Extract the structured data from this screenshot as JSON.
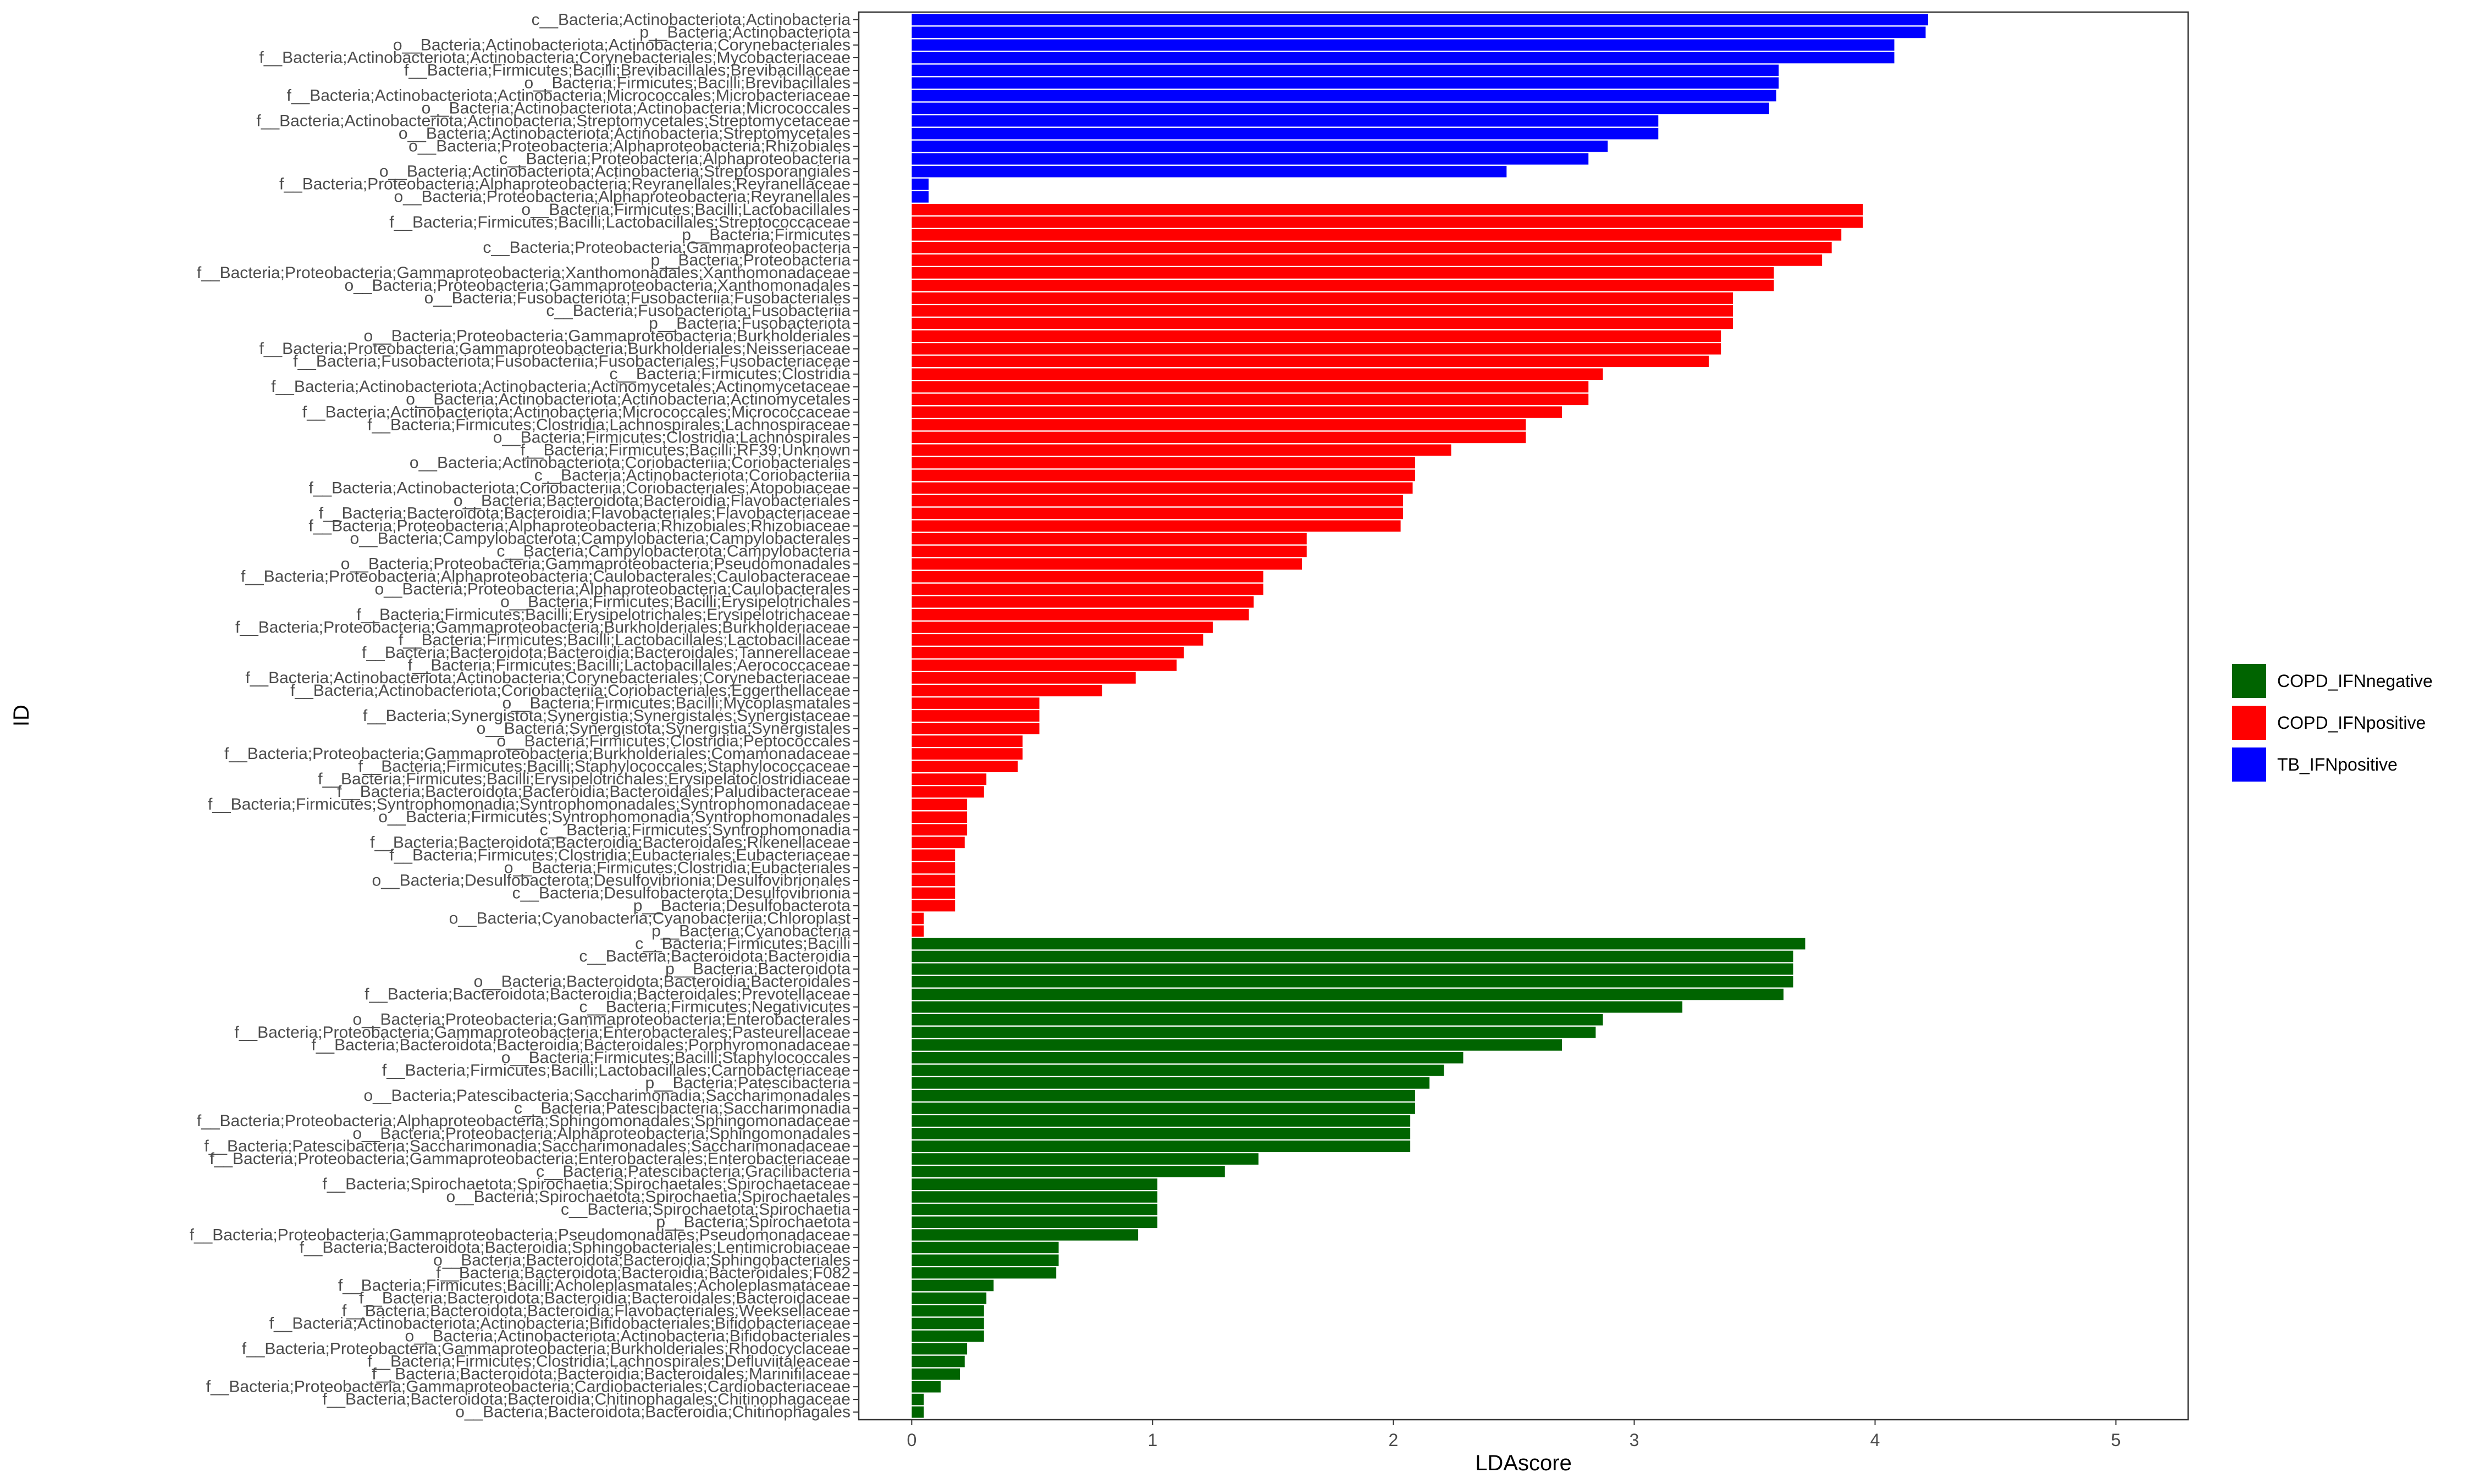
{
  "chart_data": {
    "type": "bar",
    "orientation": "horizontal",
    "xlabel": "LDAscore",
    "ylabel": "ID",
    "xlim": [
      -0.22,
      5.3
    ],
    "x_ticks": [
      0,
      1,
      2,
      3,
      4,
      5
    ],
    "grid": false,
    "legend_position": "right",
    "legend": [
      {
        "name": "COPD_IFNnegative",
        "color": "#006400"
      },
      {
        "name": "COPD_IFNpositive",
        "color": "#FF0000"
      },
      {
        "name": "TB_IFNpositive",
        "color": "#0000FF"
      }
    ],
    "bars": [
      {
        "label": "c__Bacteria;Actinobacteriota;Actinobacteria",
        "value": 4.22,
        "group": "TB_IFNpositive"
      },
      {
        "label": "p__Bacteria;Actinobacteriota",
        "value": 4.21,
        "group": "TB_IFNpositive"
      },
      {
        "label": "o__Bacteria;Actinobacteriota;Actinobacteria;Corynebacteriales",
        "value": 4.08,
        "group": "TB_IFNpositive"
      },
      {
        "label": "f__Bacteria;Actinobacteriota;Actinobacteria;Corynebacteriales;Mycobacteriaceae",
        "value": 4.08,
        "group": "TB_IFNpositive"
      },
      {
        "label": "f__Bacteria;Firmicutes;Bacilli;Brevibacillales;Brevibacillaceae",
        "value": 3.6,
        "group": "TB_IFNpositive"
      },
      {
        "label": "o__Bacteria;Firmicutes;Bacilli;Brevibacillales",
        "value": 3.6,
        "group": "TB_IFNpositive"
      },
      {
        "label": "f__Bacteria;Actinobacteriota;Actinobacteria;Micrococcales;Microbacteriaceae",
        "value": 3.59,
        "group": "TB_IFNpositive"
      },
      {
        "label": "o__Bacteria;Actinobacteriota;Actinobacteria;Micrococcales",
        "value": 3.56,
        "group": "TB_IFNpositive"
      },
      {
        "label": "f__Bacteria;Actinobacteriota;Actinobacteria;Streptomycetales;Streptomycetaceae",
        "value": 3.1,
        "group": "TB_IFNpositive"
      },
      {
        "label": "o__Bacteria;Actinobacteriota;Actinobacteria;Streptomycetales",
        "value": 3.1,
        "group": "TB_IFNpositive"
      },
      {
        "label": "o__Bacteria;Proteobacteria;Alphaproteobacteria;Rhizobiales",
        "value": 2.89,
        "group": "TB_IFNpositive"
      },
      {
        "label": "c__Bacteria;Proteobacteria;Alphaproteobacteria",
        "value": 2.81,
        "group": "TB_IFNpositive"
      },
      {
        "label": "o__Bacteria;Actinobacteriota;Actinobacteria;Streptosporangiales",
        "value": 2.47,
        "group": "TB_IFNpositive"
      },
      {
        "label": "f__Bacteria;Proteobacteria;Alphaproteobacteria;Reyranellales;Reyranellaceae",
        "value": 0.07,
        "group": "TB_IFNpositive"
      },
      {
        "label": "o__Bacteria;Proteobacteria;Alphaproteobacteria;Reyranellales",
        "value": 0.07,
        "group": "TB_IFNpositive"
      },
      {
        "label": "o__Bacteria;Firmicutes;Bacilli;Lactobacillales",
        "value": 3.95,
        "group": "COPD_IFNpositive"
      },
      {
        "label": "f__Bacteria;Firmicutes;Bacilli;Lactobacillales;Streptococcaceae",
        "value": 3.95,
        "group": "COPD_IFNpositive"
      },
      {
        "label": "p__Bacteria;Firmicutes",
        "value": 3.86,
        "group": "COPD_IFNpositive"
      },
      {
        "label": "c__Bacteria;Proteobacteria;Gammaproteobacteria",
        "value": 3.82,
        "group": "COPD_IFNpositive"
      },
      {
        "label": "p__Bacteria;Proteobacteria",
        "value": 3.78,
        "group": "COPD_IFNpositive"
      },
      {
        "label": "f__Bacteria;Proteobacteria;Gammaproteobacteria;Xanthomonadales;Xanthomonadaceae",
        "value": 3.58,
        "group": "COPD_IFNpositive"
      },
      {
        "label": "o__Bacteria;Proteobacteria;Gammaproteobacteria;Xanthomonadales",
        "value": 3.58,
        "group": "COPD_IFNpositive"
      },
      {
        "label": "o__Bacteria;Fusobacteriota;Fusobacteriia;Fusobacteriales",
        "value": 3.41,
        "group": "COPD_IFNpositive"
      },
      {
        "label": "c__Bacteria;Fusobacteriota;Fusobacteriia",
        "value": 3.41,
        "group": "COPD_IFNpositive"
      },
      {
        "label": "p__Bacteria;Fusobacteriota",
        "value": 3.41,
        "group": "COPD_IFNpositive"
      },
      {
        "label": "o__Bacteria;Proteobacteria;Gammaproteobacteria;Burkholderiales",
        "value": 3.36,
        "group": "COPD_IFNpositive"
      },
      {
        "label": "f__Bacteria;Proteobacteria;Gammaproteobacteria;Burkholderiales;Neisseriaceae",
        "value": 3.36,
        "group": "COPD_IFNpositive"
      },
      {
        "label": "f__Bacteria;Fusobacteriota;Fusobacteriia;Fusobacteriales;Fusobacteriaceae",
        "value": 3.31,
        "group": "COPD_IFNpositive"
      },
      {
        "label": "c__Bacteria;Firmicutes;Clostridia",
        "value": 2.87,
        "group": "COPD_IFNpositive"
      },
      {
        "label": "f__Bacteria;Actinobacteriota;Actinobacteria;Actinomycetales;Actinomycetaceae",
        "value": 2.81,
        "group": "COPD_IFNpositive"
      },
      {
        "label": "o__Bacteria;Actinobacteriota;Actinobacteria;Actinomycetales",
        "value": 2.81,
        "group": "COPD_IFNpositive"
      },
      {
        "label": "f__Bacteria;Actinobacteriota;Actinobacteria;Micrococcales;Micrococcaceae",
        "value": 2.7,
        "group": "COPD_IFNpositive"
      },
      {
        "label": "f__Bacteria;Firmicutes;Clostridia;Lachnospirales;Lachnospiraceae",
        "value": 2.55,
        "group": "COPD_IFNpositive"
      },
      {
        "label": "o__Bacteria;Firmicutes;Clostridia;Lachnospirales",
        "value": 2.55,
        "group": "COPD_IFNpositive"
      },
      {
        "label": "f__Bacteria;Firmicutes;Bacilli;RF39;Unknown",
        "value": 2.24,
        "group": "COPD_IFNpositive"
      },
      {
        "label": "o__Bacteria;Actinobacteriota;Coriobacteriia;Coriobacteriales",
        "value": 2.09,
        "group": "COPD_IFNpositive"
      },
      {
        "label": "c__Bacteria;Actinobacteriota;Coriobacteriia",
        "value": 2.09,
        "group": "COPD_IFNpositive"
      },
      {
        "label": "f__Bacteria;Actinobacteriota;Coriobacteriia;Coriobacteriales;Atopobiaceae",
        "value": 2.08,
        "group": "COPD_IFNpositive"
      },
      {
        "label": "o__Bacteria;Bacteroidota;Bacteroidia;Flavobacteriales",
        "value": 2.04,
        "group": "COPD_IFNpositive"
      },
      {
        "label": "f__Bacteria;Bacteroidota;Bacteroidia;Flavobacteriales;Flavobacteriaceae",
        "value": 2.04,
        "group": "COPD_IFNpositive"
      },
      {
        "label": "f__Bacteria;Proteobacteria;Alphaproteobacteria;Rhizobiales;Rhizobiaceae",
        "value": 2.03,
        "group": "COPD_IFNpositive"
      },
      {
        "label": "o__Bacteria;Campylobacterota;Campylobacteria;Campylobacterales",
        "value": 1.64,
        "group": "COPD_IFNpositive"
      },
      {
        "label": "c__Bacteria;Campylobacterota;Campylobacteria",
        "value": 1.64,
        "group": "COPD_IFNpositive"
      },
      {
        "label": "o__Bacteria;Proteobacteria;Gammaproteobacteria;Pseudomonadales",
        "value": 1.62,
        "group": "COPD_IFNpositive"
      },
      {
        "label": "f__Bacteria;Proteobacteria;Alphaproteobacteria;Caulobacterales;Caulobacteraceae",
        "value": 1.46,
        "group": "COPD_IFNpositive"
      },
      {
        "label": "o__Bacteria;Proteobacteria;Alphaproteobacteria;Caulobacterales",
        "value": 1.46,
        "group": "COPD_IFNpositive"
      },
      {
        "label": "o__Bacteria;Firmicutes;Bacilli;Erysipelotrichales",
        "value": 1.42,
        "group": "COPD_IFNpositive"
      },
      {
        "label": "f__Bacteria;Firmicutes;Bacilli;Erysipelotrichales;Erysipelotrichaceae",
        "value": 1.4,
        "group": "COPD_IFNpositive"
      },
      {
        "label": "f__Bacteria;Proteobacteria;Gammaproteobacteria;Burkholderiales;Burkholderiaceae",
        "value": 1.25,
        "group": "COPD_IFNpositive"
      },
      {
        "label": "f__Bacteria;Firmicutes;Bacilli;Lactobacillales;Lactobacillaceae",
        "value": 1.21,
        "group": "COPD_IFNpositive"
      },
      {
        "label": "f__Bacteria;Bacteroidota;Bacteroidia;Bacteroidales;Tannerellaceae",
        "value": 1.13,
        "group": "COPD_IFNpositive"
      },
      {
        "label": "f__Bacteria;Firmicutes;Bacilli;Lactobacillales;Aerococcaceae",
        "value": 1.1,
        "group": "COPD_IFNpositive"
      },
      {
        "label": "f__Bacteria;Actinobacteriota;Actinobacteria;Corynebacteriales;Corynebacteriaceae",
        "value": 0.93,
        "group": "COPD_IFNpositive"
      },
      {
        "label": "f__Bacteria;Actinobacteriota;Coriobacteriia;Coriobacteriales;Eggerthellaceae",
        "value": 0.79,
        "group": "COPD_IFNpositive"
      },
      {
        "label": "o__Bacteria;Firmicutes;Bacilli;Mycoplasmatales",
        "value": 0.53,
        "group": "COPD_IFNpositive"
      },
      {
        "label": "f__Bacteria;Synergistota;Synergistia;Synergistales;Synergistaceae",
        "value": 0.53,
        "group": "COPD_IFNpositive"
      },
      {
        "label": "o__Bacteria;Synergistota;Synergistia;Synergistales",
        "value": 0.53,
        "group": "COPD_IFNpositive"
      },
      {
        "label": "o__Bacteria;Firmicutes;Clostridia;Peptococcales",
        "value": 0.46,
        "group": "COPD_IFNpositive"
      },
      {
        "label": "f__Bacteria;Proteobacteria;Gammaproteobacteria;Burkholderiales;Comamonadaceae",
        "value": 0.46,
        "group": "COPD_IFNpositive"
      },
      {
        "label": "f__Bacteria;Firmicutes;Bacilli;Staphylococcales;Staphylococcaceae",
        "value": 0.44,
        "group": "COPD_IFNpositive"
      },
      {
        "label": "f__Bacteria;Firmicutes;Bacilli;Erysipelotrichales;Erysipelatoclostridiaceae",
        "value": 0.31,
        "group": "COPD_IFNpositive"
      },
      {
        "label": "f__Bacteria;Bacteroidota;Bacteroidia;Bacteroidales;Paludibacteraceae",
        "value": 0.3,
        "group": "COPD_IFNpositive"
      },
      {
        "label": "f__Bacteria;Firmicutes;Syntrophomonadia;Syntrophomonadales;Syntrophomonadaceae",
        "value": 0.23,
        "group": "COPD_IFNpositive"
      },
      {
        "label": "o__Bacteria;Firmicutes;Syntrophomonadia;Syntrophomonadales",
        "value": 0.23,
        "group": "COPD_IFNpositive"
      },
      {
        "label": "c__Bacteria;Firmicutes;Syntrophomonadia",
        "value": 0.23,
        "group": "COPD_IFNpositive"
      },
      {
        "label": "f__Bacteria;Bacteroidota;Bacteroidia;Bacteroidales;Rikenellaceae",
        "value": 0.22,
        "group": "COPD_IFNpositive"
      },
      {
        "label": "f__Bacteria;Firmicutes;Clostridia;Eubacteriales;Eubacteriaceae",
        "value": 0.18,
        "group": "COPD_IFNpositive"
      },
      {
        "label": "o__Bacteria;Firmicutes;Clostridia;Eubacteriales",
        "value": 0.18,
        "group": "COPD_IFNpositive"
      },
      {
        "label": "o__Bacteria;Desulfobacterota;Desulfovibrionia;Desulfovibrionales",
        "value": 0.18,
        "group": "COPD_IFNpositive"
      },
      {
        "label": "c__Bacteria;Desulfobacterota;Desulfovibrionia",
        "value": 0.18,
        "group": "COPD_IFNpositive"
      },
      {
        "label": "p__Bacteria;Desulfobacterota",
        "value": 0.18,
        "group": "COPD_IFNpositive"
      },
      {
        "label": "o__Bacteria;Cyanobacteria;Cyanobacteriia;Chloroplast",
        "value": 0.05,
        "group": "COPD_IFNpositive"
      },
      {
        "label": "p__Bacteria;Cyanobacteria",
        "value": 0.05,
        "group": "COPD_IFNpositive"
      },
      {
        "label": "c__Bacteria;Firmicutes;Bacilli",
        "value": 3.71,
        "group": "COPD_IFNnegative"
      },
      {
        "label": "c__Bacteria;Bacteroidota;Bacteroidia",
        "value": 3.66,
        "group": "COPD_IFNnegative"
      },
      {
        "label": "p__Bacteria;Bacteroidota",
        "value": 3.66,
        "group": "COPD_IFNnegative"
      },
      {
        "label": "o__Bacteria;Bacteroidota;Bacteroidia;Bacteroidales",
        "value": 3.66,
        "group": "COPD_IFNnegative"
      },
      {
        "label": "f__Bacteria;Bacteroidota;Bacteroidia;Bacteroidales;Prevotellaceae",
        "value": 3.62,
        "group": "COPD_IFNnegative"
      },
      {
        "label": "c__Bacteria;Firmicutes;Negativicutes",
        "value": 3.2,
        "group": "COPD_IFNnegative"
      },
      {
        "label": "o__Bacteria;Proteobacteria;Gammaproteobacteria;Enterobacterales",
        "value": 2.87,
        "group": "COPD_IFNnegative"
      },
      {
        "label": "f__Bacteria;Proteobacteria;Gammaproteobacteria;Enterobacterales;Pasteurellaceae",
        "value": 2.84,
        "group": "COPD_IFNnegative"
      },
      {
        "label": "f__Bacteria;Bacteroidota;Bacteroidia;Bacteroidales;Porphyromonadaceae",
        "value": 2.7,
        "group": "COPD_IFNnegative"
      },
      {
        "label": "o__Bacteria;Firmicutes;Bacilli;Staphylococcales",
        "value": 2.29,
        "group": "COPD_IFNnegative"
      },
      {
        "label": "f__Bacteria;Firmicutes;Bacilli;Lactobacillales;Carnobacteriaceae",
        "value": 2.21,
        "group": "COPD_IFNnegative"
      },
      {
        "label": "p__Bacteria;Patescibacteria",
        "value": 2.15,
        "group": "COPD_IFNnegative"
      },
      {
        "label": "o__Bacteria;Patescibacteria;Saccharimonadia;Saccharimonadales",
        "value": 2.09,
        "group": "COPD_IFNnegative"
      },
      {
        "label": "c__Bacteria;Patescibacteria;Saccharimonadia",
        "value": 2.09,
        "group": "COPD_IFNnegative"
      },
      {
        "label": "f__Bacteria;Proteobacteria;Alphaproteobacteria;Sphingomonadales;Sphingomonadaceae",
        "value": 2.07,
        "group": "COPD_IFNnegative"
      },
      {
        "label": "o__Bacteria;Proteobacteria;Alphaproteobacteria;Sphingomonadales",
        "value": 2.07,
        "group": "COPD_IFNnegative"
      },
      {
        "label": "f__Bacteria;Patescibacteria;Saccharimonadia;Saccharimonadales;Saccharimonadaceae",
        "value": 2.07,
        "group": "COPD_IFNnegative"
      },
      {
        "label": "f__Bacteria;Proteobacteria;Gammaproteobacteria;Enterobacterales;Enterobacteriaceae",
        "value": 1.44,
        "group": "COPD_IFNnegative"
      },
      {
        "label": "c__Bacteria;Patescibacteria;Gracilibacteria",
        "value": 1.3,
        "group": "COPD_IFNnegative"
      },
      {
        "label": "f__Bacteria;Spirochaetota;Spirochaetia;Spirochaetales;Spirochaetaceae",
        "value": 1.02,
        "group": "COPD_IFNnegative"
      },
      {
        "label": "o__Bacteria;Spirochaetota;Spirochaetia;Spirochaetales",
        "value": 1.02,
        "group": "COPD_IFNnegative"
      },
      {
        "label": "c__Bacteria;Spirochaetota;Spirochaetia",
        "value": 1.02,
        "group": "COPD_IFNnegative"
      },
      {
        "label": "p__Bacteria;Spirochaetota",
        "value": 1.02,
        "group": "COPD_IFNnegative"
      },
      {
        "label": "f__Bacteria;Proteobacteria;Gammaproteobacteria;Pseudomonadales;Pseudomonadaceae",
        "value": 0.94,
        "group": "COPD_IFNnegative"
      },
      {
        "label": "f__Bacteria;Bacteroidota;Bacteroidia;Sphingobacteriales;Lentimicrobiaceae",
        "value": 0.61,
        "group": "COPD_IFNnegative"
      },
      {
        "label": "o__Bacteria;Bacteroidota;Bacteroidia;Sphingobacteriales",
        "value": 0.61,
        "group": "COPD_IFNnegative"
      },
      {
        "label": "f__Bacteria;Bacteroidota;Bacteroidia;Bacteroidales;F082",
        "value": 0.6,
        "group": "COPD_IFNnegative"
      },
      {
        "label": "f__Bacteria;Firmicutes;Bacilli;Acholeplasmatales;Acholeplasmataceae",
        "value": 0.34,
        "group": "COPD_IFNnegative"
      },
      {
        "label": "f__Bacteria;Bacteroidota;Bacteroidia;Bacteroidales;Bacteroidaceae",
        "value": 0.31,
        "group": "COPD_IFNnegative"
      },
      {
        "label": "f__Bacteria;Bacteroidota;Bacteroidia;Flavobacteriales;Weeksellaceae",
        "value": 0.3,
        "group": "COPD_IFNnegative"
      },
      {
        "label": "f__Bacteria;Actinobacteriota;Actinobacteria;Bifidobacteriales;Bifidobacteriaceae",
        "value": 0.3,
        "group": "COPD_IFNnegative"
      },
      {
        "label": "o__Bacteria;Actinobacteriota;Actinobacteria;Bifidobacteriales",
        "value": 0.3,
        "group": "COPD_IFNnegative"
      },
      {
        "label": "f__Bacteria;Proteobacteria;Gammaproteobacteria;Burkholderiales;Rhodocyclaceae",
        "value": 0.23,
        "group": "COPD_IFNnegative"
      },
      {
        "label": "f__Bacteria;Firmicutes;Clostridia;Lachnospirales;Defluviitaleaceae",
        "value": 0.22,
        "group": "COPD_IFNnegative"
      },
      {
        "label": "f__Bacteria;Bacteroidota;Bacteroidia;Bacteroidales;Marinifilaceae",
        "value": 0.2,
        "group": "COPD_IFNnegative"
      },
      {
        "label": "f__Bacteria;Proteobacteria;Gammaproteobacteria;Cardiobacteriales;Cardiobacteriaceae",
        "value": 0.12,
        "group": "COPD_IFNnegative"
      },
      {
        "label": "f__Bacteria;Bacteroidota;Bacteroidia;Chitinophagales;Chitinophagaceae",
        "value": 0.05,
        "group": "COPD_IFNnegative"
      },
      {
        "label": "o__Bacteria;Bacteroidota;Bacteroidia;Chitinophagales",
        "value": 0.05,
        "group": "COPD_IFNnegative"
      }
    ]
  }
}
